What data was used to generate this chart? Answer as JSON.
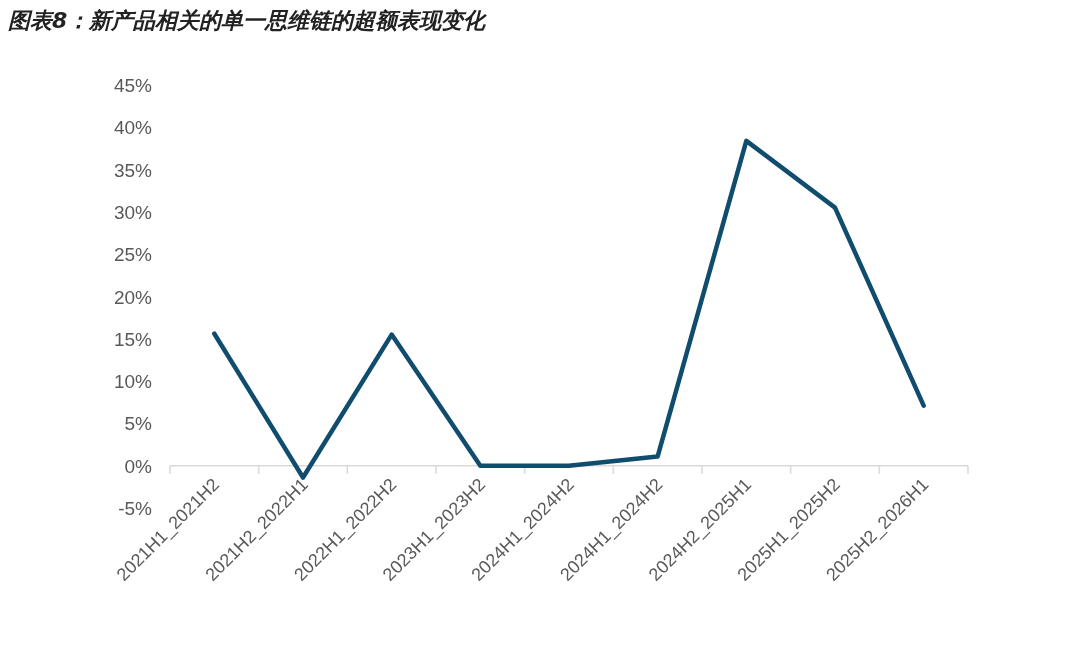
{
  "chart_data": {
    "type": "line",
    "title": "图表8：新产品相关的单一思维链的超额表现变化",
    "categories": [
      "2021H1_2021H2",
      "2021H2_2022H1",
      "2022H1_2022H2",
      "2023H1_2023H2",
      "2024H1_2024H2",
      "2024H1_2024H2",
      "2024H2_2025H1",
      "2025H1_2025H2",
      "2025H2_2026H1"
    ],
    "values": [
      15.6,
      -1.4,
      15.5,
      0,
      0,
      1.1,
      38.4,
      30.5,
      7.1
    ],
    "color": "#0f4c6e",
    "ylim": [
      -5,
      45
    ],
    "yticks": [
      {
        "value": -5,
        "label": "-5%"
      },
      {
        "value": 0,
        "label": "0%"
      },
      {
        "value": 5,
        "label": "5%"
      },
      {
        "value": 10,
        "label": "10%"
      },
      {
        "value": 15,
        "label": "15%"
      },
      {
        "value": 20,
        "label": "20%"
      },
      {
        "value": 25,
        "label": "25%"
      },
      {
        "value": 30,
        "label": "30%"
      },
      {
        "value": 35,
        "label": "35%"
      },
      {
        "value": 40,
        "label": "40%"
      },
      {
        "value": 45,
        "label": "45%"
      }
    ]
  }
}
